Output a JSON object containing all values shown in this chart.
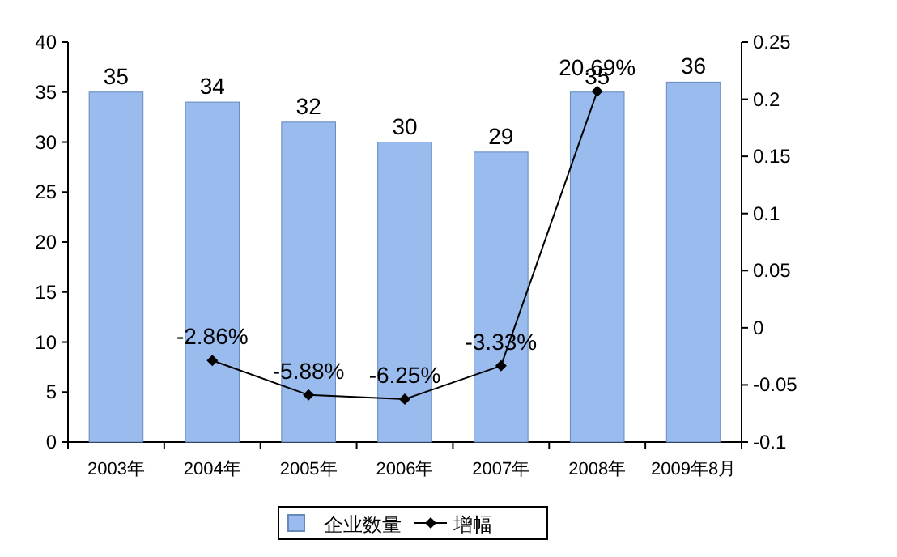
{
  "chart_data": {
    "type": "bar",
    "categories": [
      "2003年",
      "2004年",
      "2005年",
      "2006年",
      "2007年",
      "2008年",
      "2009年8月"
    ],
    "series": [
      {
        "name": "企业数量",
        "color": "#99bbee",
        "values": [
          35,
          34,
          32,
          30,
          29,
          35,
          36
        ],
        "value_labels": [
          "35",
          "34",
          "32",
          "30",
          "29",
          "35",
          "36"
        ]
      },
      {
        "name": "增幅",
        "type": "line",
        "axis": "y2",
        "color": "#000000",
        "marker": "diamond",
        "values": [
          null,
          -0.0286,
          -0.0588,
          -0.0625,
          -0.0333,
          0.2069,
          null
        ],
        "value_labels": [
          null,
          "-2.86%",
          "-5.88%",
          "-6.25%",
          "-3.33%",
          "20.69%",
          null
        ]
      }
    ],
    "ylim": [
      0,
      40
    ],
    "yticks": [
      0,
      5,
      10,
      15,
      20,
      25,
      30,
      35,
      40
    ],
    "y2lim": [
      -0.1,
      0.25
    ],
    "y2ticks": [
      -0.1,
      -0.05,
      0,
      0.05,
      0.1,
      0.15,
      0.2,
      0.25
    ],
    "grid": false,
    "legend": "bottom"
  }
}
